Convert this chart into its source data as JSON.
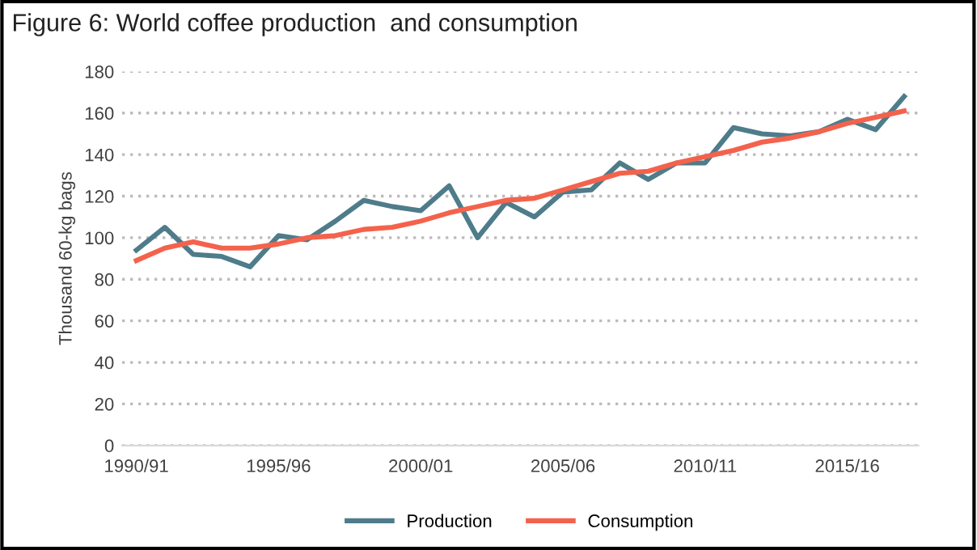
{
  "chart_data": {
    "type": "line",
    "title": "Figure 6: World coffee production  and consumption",
    "ylabel": "Thousand 60-kg bags",
    "categories": [
      "1990/91",
      null,
      null,
      null,
      null,
      "1995/96",
      null,
      null,
      null,
      null,
      "2000/01",
      null,
      null,
      null,
      null,
      "2005/06",
      null,
      null,
      null,
      null,
      "2010/11",
      null,
      null,
      null,
      null,
      "2015/16",
      null,
      null
    ],
    "series": [
      {
        "name": "Production",
        "color": "#4e7c8a",
        "values": [
          94,
          105,
          92,
          91,
          86,
          101,
          99,
          108,
          118,
          115,
          113,
          125,
          100,
          117,
          110,
          122,
          123,
          136,
          128,
          136,
          136,
          153,
          150,
          149,
          151,
          157,
          152,
          168
        ]
      },
      {
        "name": "Consumption",
        "color": "#f4624c",
        "values": [
          89,
          95,
          98,
          95,
          95,
          97,
          100,
          101,
          104,
          105,
          108,
          112,
          115,
          118,
          119,
          123,
          127,
          131,
          132,
          136,
          139,
          142,
          146,
          148,
          151,
          155,
          158,
          161
        ]
      }
    ],
    "ylim": [
      0,
      180
    ],
    "yticks": [
      0,
      20,
      40,
      60,
      80,
      100,
      120,
      140,
      160,
      180
    ],
    "grid": "y",
    "legend": "bottom",
    "marker": "none",
    "line_style": "solid"
  }
}
